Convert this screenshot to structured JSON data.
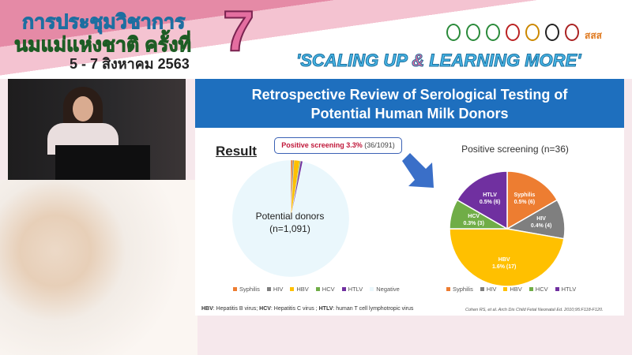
{
  "banner": {
    "title_line1": "การประชุมวิชาการ",
    "title_line2": "นมแม่แห่งชาติ ครั้งที่",
    "dates": "5 - 7 สิงหาคม 2563",
    "number": "7",
    "slogan_pre": "'SCALING UP ",
    "slogan_amp": "&",
    "slogan_post": " LEARNING MORE'",
    "logo_text": "สสส"
  },
  "slide": {
    "title_line1": "Retrospective Review of Serological Testing of",
    "title_line2": "Potential Human Milk Donors",
    "result_label": "Result",
    "callout_bold": "Positive screening 3.3%",
    "callout_rest": " (36/1091)",
    "left_pie_label1": "Potential donors",
    "left_pie_label2": "(n=1,091)",
    "right_title": "Positive screening (n=36)",
    "footnote_parts": [
      "HBV",
      ": Hepatitis B virus; ",
      "HCV",
      ": Hepatitis C virus ; ",
      "HTLV",
      ": human T cell lymphotropic virus"
    ],
    "citation": "Cohen RS, et al. Arch Dis Child Fetal Neonatal Ed. 2010;95:F118-F120."
  },
  "chart_data": [
    {
      "type": "pie",
      "categories": [
        "Syphilis",
        "HIV",
        "HBV",
        "HCV",
        "HTLV",
        "Negative"
      ],
      "values": [
        6,
        4,
        17,
        3,
        6,
        1055
      ],
      "colors": [
        "#ed7d31",
        "#7f7f7f",
        "#ffc000",
        "#70ad47",
        "#7030a0",
        "#eaf7fc"
      ],
      "legend": "bottom"
    },
    {
      "type": "pie",
      "title": "Positive screening (n=36)",
      "categories": [
        "Syphilis",
        "HIV",
        "HBV",
        "HCV",
        "HTLV"
      ],
      "values": [
        6,
        4,
        17,
        3,
        6
      ],
      "labels": [
        "0.5% (6)",
        "0.4% (4)",
        "1.6% (17)",
        "0.3% (3)",
        "0.5% (6)"
      ],
      "colors": [
        "#ed7d31",
        "#7f7f7f",
        "#ffc000",
        "#70ad47",
        "#7030a0"
      ],
      "legend": "bottom"
    }
  ]
}
